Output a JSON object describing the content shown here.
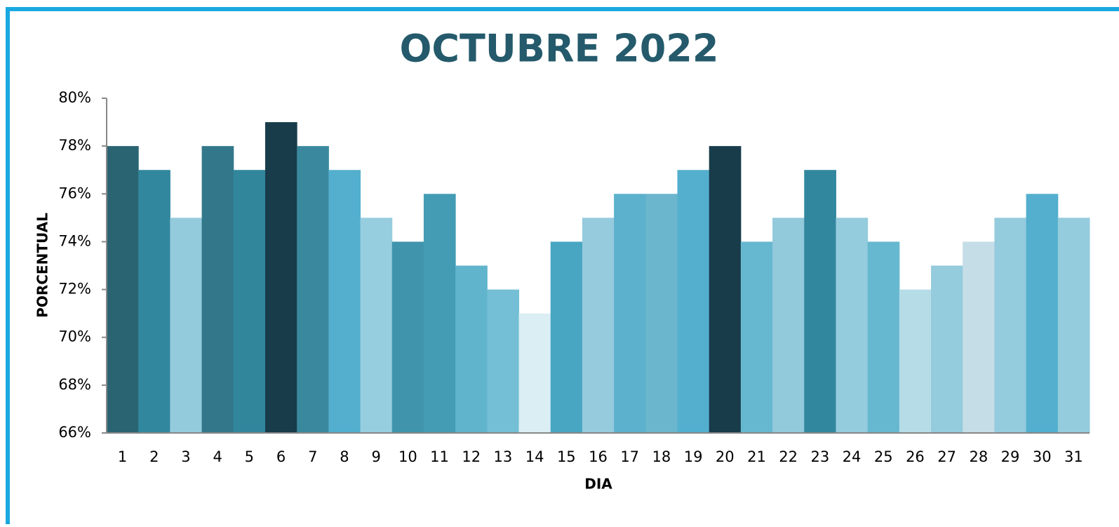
{
  "chart_data": {
    "type": "bar",
    "title": "OCTUBRE 2022",
    "x_label": "DIA",
    "y_label": "PORCENTUAL",
    "categories": [
      "1",
      "2",
      "3",
      "4",
      "5",
      "6",
      "7",
      "8",
      "9",
      "10",
      "11",
      "12",
      "13",
      "14",
      "15",
      "16",
      "17",
      "18",
      "19",
      "20",
      "21",
      "22",
      "23",
      "24",
      "25",
      "26",
      "27",
      "28",
      "29",
      "30",
      "31"
    ],
    "values": [
      78,
      77,
      75,
      78,
      77,
      79,
      78,
      77,
      75,
      74,
      76,
      73,
      72,
      71,
      74,
      75,
      76,
      76,
      77,
      78,
      74,
      75,
      77,
      75,
      74,
      72,
      73,
      74,
      75,
      76,
      75
    ],
    "colors": [
      "#2a6473",
      "#31879e",
      "#94cbdc",
      "#33788a",
      "#31869c",
      "#183c4a",
      "#3a889e",
      "#53afcd",
      "#96cddf",
      "#4095ad",
      "#439cb3",
      "#60b4cc",
      "#74bfd5",
      "#dbeef4",
      "#48a6c2",
      "#95cbdd",
      "#5cb1cc",
      "#6bb5cd",
      "#53afcd",
      "#183c4a",
      "#66b8d0",
      "#92c9db",
      "#31879e",
      "#94cbdd",
      "#66b8d0",
      "#b6dce8",
      "#94cbdd",
      "#c4dde6",
      "#94cbdd",
      "#53afcd",
      "#94cbdd"
    ],
    "ylim": [
      66,
      80
    ],
    "yticks": [
      {
        "value": 66,
        "label": "66%"
      },
      {
        "value": 68,
        "label": "68%"
      },
      {
        "value": 70,
        "label": "70%"
      },
      {
        "value": 72,
        "label": "72%"
      },
      {
        "value": 74,
        "label": "74%"
      },
      {
        "value": 76,
        "label": "76%"
      },
      {
        "value": 78,
        "label": "78%"
      },
      {
        "value": 80,
        "label": "80%"
      }
    ],
    "grid": false
  }
}
